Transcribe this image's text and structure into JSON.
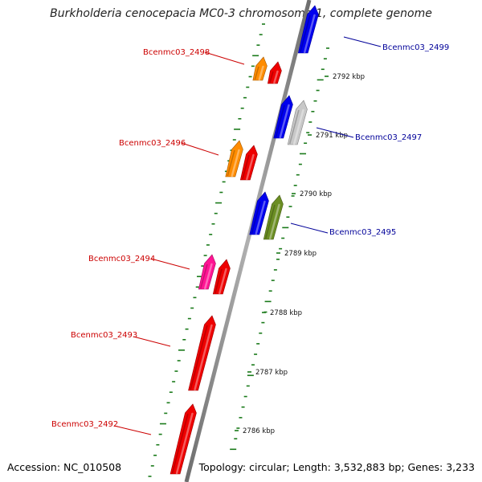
{
  "header": {
    "title": "Burkholderia cenocepacia MC0-3 chromosome 1, complete genome"
  },
  "footer": {
    "accession": "Accession: NC_010508",
    "topology": "Topology: circular; Length: 3,532,883 bp; Genes: 3,233"
  },
  "colors": {
    "red_label": "#cc0000",
    "blue_label": "#000099",
    "tick_green": "#1a7a1a",
    "backbone": "#8c8c8c"
  },
  "scale": {
    "ticks": [
      {
        "label": "2792 kbp"
      },
      {
        "label": "2791 kbp"
      },
      {
        "label": "2790 kbp"
      },
      {
        "label": "2789 kbp"
      },
      {
        "label": "2788 kbp"
      },
      {
        "label": "2787 kbp"
      },
      {
        "label": "2786 kbp"
      }
    ]
  },
  "genes": [
    {
      "label": "Bcenmc03_2499",
      "strand": "forward",
      "color": "#0000ee"
    },
    {
      "label": "Bcenmc03_2498",
      "strand": "reverse",
      "color": "#ff8c00"
    },
    {
      "label": "",
      "strand": "reverse",
      "color": "#ee0000"
    },
    {
      "label": "",
      "strand": "forward",
      "color": "#0000ee"
    },
    {
      "label": "Bcenmc03_2497",
      "strand": "forward",
      "color": "#c8c8c8"
    },
    {
      "label": "Bcenmc03_2496",
      "strand": "reverse",
      "color": "#ff8c00"
    },
    {
      "label": "",
      "strand": "reverse",
      "color": "#ee0000"
    },
    {
      "label": "",
      "strand": "forward",
      "color": "#0000ee"
    },
    {
      "label": "Bcenmc03_2495",
      "strand": "forward",
      "color": "#6b8e23"
    },
    {
      "label": "Bcenmc03_2494",
      "strand": "reverse",
      "color": "#ff1493"
    },
    {
      "label": "",
      "strand": "reverse",
      "color": "#ee0000"
    },
    {
      "label": "Bcenmc03_2493",
      "strand": "reverse",
      "color": "#ee0000"
    },
    {
      "label": "Bcenmc03_2492",
      "strand": "reverse",
      "color": "#ee0000"
    }
  ]
}
